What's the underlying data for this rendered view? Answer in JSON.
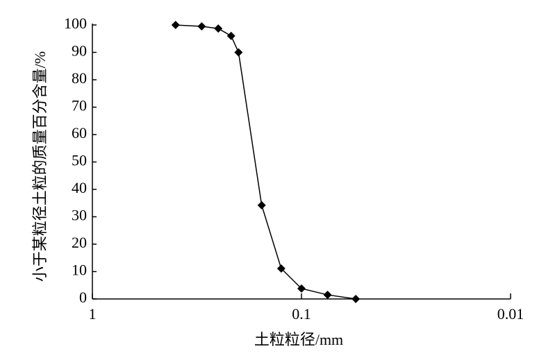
{
  "chart_data": {
    "type": "line",
    "x_label": "土粒粒径/mm",
    "y_label": "小于某粒径土粒的质量百分含量/%",
    "x": [
      0.4,
      0.3,
      0.25,
      0.217,
      0.2,
      0.155,
      0.125,
      0.1,
      0.075,
      0.055
    ],
    "values": [
      100,
      99.5,
      98.7,
      96,
      90,
      34.2,
      11.1,
      3.8,
      1.5,
      0
    ],
    "color": "#000000",
    "xscale": "log",
    "xlim": [
      1,
      0.01
    ],
    "xticks": [
      1,
      0.1,
      0.01
    ],
    "ylim": [
      0,
      100
    ],
    "yticks": [
      0,
      10,
      20,
      30,
      40,
      50,
      60,
      70,
      80,
      90,
      100
    ],
    "grid": false
  }
}
